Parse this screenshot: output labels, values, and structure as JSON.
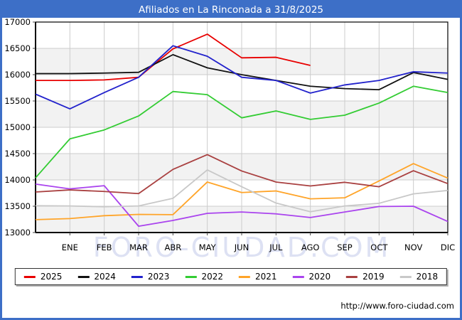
{
  "title": "Afiliados en La Rinconada a 31/8/2025",
  "watermark": "FORO-CIUDAD.COM",
  "footer_url": "http://www.foro-ciudad.com",
  "colors": {
    "frame_and_title_bar": "#3d6fc7",
    "plot_band_gray": "#f2f2f2",
    "gridline": "#cccccc",
    "plot_border": "#000000",
    "watermark": "#c7cdeb"
  },
  "chart_data": {
    "type": "line",
    "title": "Afiliados en La Rinconada a 31/8/2025",
    "xlabel": "",
    "ylabel": "",
    "x_categories": [
      "ENE",
      "FEB",
      "MAR",
      "ABR",
      "MAY",
      "JUN",
      "JUL",
      "AGO",
      "SEP",
      "OCT",
      "NOV",
      "DIC"
    ],
    "point_note": "values[0] is the lead-in point drawn on the y-axis left edge; values[1..12] correspond to ENE..DIC; null = no data (2025 ends in AGO)",
    "ylim": [
      13000,
      17000
    ],
    "ytick_step": 500,
    "yticks": [
      13000,
      13500,
      14000,
      14500,
      15000,
      15500,
      16000,
      16500,
      17000
    ],
    "grid": true,
    "legend_position": "bottom",
    "series": [
      {
        "name": "2025",
        "color": "#e80000",
        "values": [
          15890,
          15890,
          15900,
          15950,
          16490,
          16770,
          16320,
          16330,
          16175,
          null,
          null,
          null,
          null
        ]
      },
      {
        "name": "2024",
        "color": "#111111",
        "values": [
          16020,
          16020,
          16030,
          16045,
          16380,
          16130,
          16000,
          15890,
          15780,
          15735,
          15715,
          16040,
          15910
        ]
      },
      {
        "name": "2023",
        "color": "#2222cc",
        "values": [
          15630,
          15350,
          15660,
          15950,
          16550,
          16350,
          15950,
          15890,
          15650,
          15805,
          15890,
          16055,
          16030
        ]
      },
      {
        "name": "2022",
        "color": "#33cc33",
        "values": [
          14040,
          14780,
          14950,
          15215,
          15680,
          15620,
          15180,
          15310,
          15150,
          15230,
          15460,
          15780,
          15660
        ]
      },
      {
        "name": "2021",
        "color": "#ffa428",
        "values": [
          13245,
          13265,
          13320,
          13345,
          13340,
          13960,
          13760,
          13790,
          13640,
          13660,
          13980,
          14310,
          14035
        ]
      },
      {
        "name": "2020",
        "color": "#aa44ee",
        "values": [
          13920,
          13830,
          13890,
          13120,
          13230,
          13365,
          13390,
          13355,
          13285,
          13390,
          13495,
          13500,
          13210
        ]
      },
      {
        "name": "2019",
        "color": "#a94040",
        "values": [
          13770,
          13810,
          13780,
          13740,
          14200,
          14480,
          14170,
          13960,
          13885,
          13955,
          13870,
          14175,
          13930
        ]
      },
      {
        "name": "2018",
        "color": "#c8c8c8",
        "values": [
          13510,
          13505,
          13490,
          13505,
          13650,
          14190,
          13870,
          13560,
          13395,
          13505,
          13555,
          13735,
          13800
        ]
      }
    ]
  }
}
